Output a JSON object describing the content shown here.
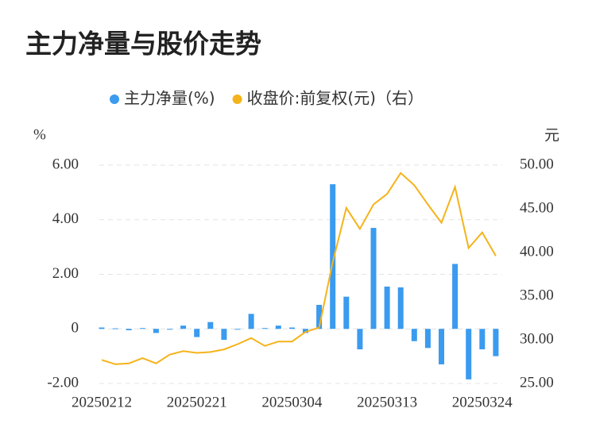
{
  "chart_data": {
    "type": "bar_line",
    "title": "主力净量与股价走势",
    "y_label": "%",
    "y2_label": "元",
    "categories": [
      "20250212",
      null,
      null,
      null,
      null,
      null,
      null,
      "20250221",
      null,
      null,
      null,
      null,
      null,
      null,
      "20250304",
      null,
      null,
      null,
      null,
      null,
      null,
      "20250313",
      null,
      null,
      null,
      null,
      null,
      null,
      "20250324",
      null
    ],
    "series": [
      {
        "name": "主力净量(%)",
        "type": "bar",
        "color": "#3a9bef",
        "axis": "y",
        "values": [
          0.05,
          0.02,
          -0.05,
          0.03,
          -0.15,
          -0.02,
          0.12,
          -0.3,
          0.25,
          -0.4,
          -0.02,
          0.55,
          0.03,
          0.12,
          0.05,
          -0.15,
          0.88,
          5.3,
          1.18,
          -0.75,
          3.7,
          1.55,
          1.52,
          -0.45,
          -0.7,
          -1.3,
          2.38,
          -1.85,
          -0.75,
          -1.0
        ]
      },
      {
        "name": "收盘价:前复权(元)（右）",
        "type": "line",
        "color": "#f5b31a",
        "axis": "y2",
        "values": [
          27.7,
          27.2,
          27.3,
          27.9,
          27.3,
          28.3,
          28.7,
          28.5,
          28.6,
          28.9,
          29.5,
          30.2,
          29.3,
          29.8,
          29.8,
          30.9,
          31.4,
          38.9,
          45.1,
          42.7,
          45.5,
          46.7,
          49.1,
          47.7,
          45.5,
          43.4,
          47.5,
          40.5,
          42.3,
          39.6
        ]
      }
    ],
    "ylim": [
      -2,
      6
    ],
    "yticks": [
      {
        "value": -2,
        "label": "-2.00"
      },
      0,
      {
        "value": 2,
        "label": "2.00"
      },
      {
        "value": 4,
        "label": "4.00"
      },
      {
        "value": 6,
        "label": "6.00"
      }
    ],
    "y2lim": [
      25,
      50
    ],
    "y2ticks": [
      {
        "value": 25,
        "label": "25.00"
      },
      {
        "value": 30,
        "label": "30.00"
      },
      {
        "value": 35,
        "label": "35.00"
      },
      {
        "value": 40,
        "label": "40.00"
      },
      {
        "value": 45,
        "label": "45.00"
      },
      {
        "value": 50,
        "label": "50.00"
      }
    ],
    "grid": true,
    "legend": "top"
  }
}
